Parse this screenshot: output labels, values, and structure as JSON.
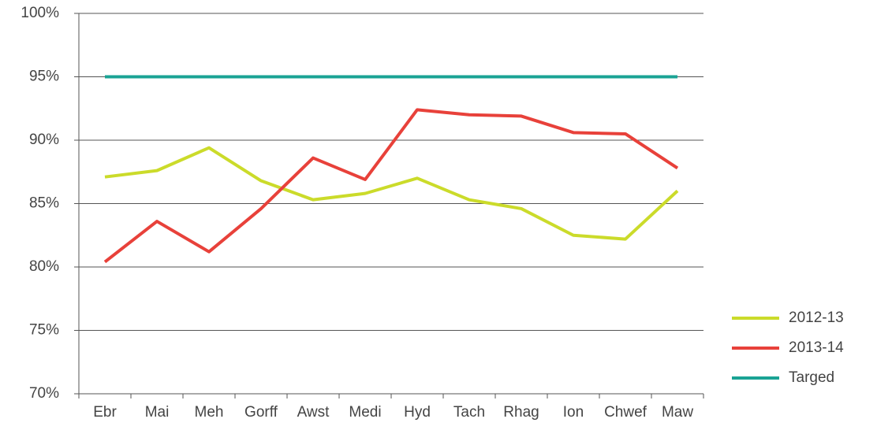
{
  "chart_data": {
    "type": "line",
    "categories": [
      "Ebr",
      "Mai",
      "Meh",
      "Gorff",
      "Awst",
      "Medi",
      "Hyd",
      "Tach",
      "Rhag",
      "Ion",
      "Chwef",
      "Maw"
    ],
    "series": [
      {
        "name": "2012-13",
        "color": "#cbdb2a",
        "values": [
          87.1,
          87.6,
          89.4,
          86.8,
          85.3,
          85.8,
          87.0,
          85.3,
          84.6,
          82.5,
          82.2,
          86.0
        ]
      },
      {
        "name": "2013-14",
        "color": "#e8413a",
        "values": [
          80.4,
          83.6,
          81.2,
          84.6,
          88.6,
          86.9,
          92.4,
          92.0,
          91.9,
          90.6,
          90.5,
          87.8
        ]
      },
      {
        "name": "Targed",
        "color": "#1aa394",
        "values": [
          95,
          95,
          95,
          95,
          95,
          95,
          95,
          95,
          95,
          95,
          95,
          95
        ]
      }
    ],
    "ylim": [
      70,
      100
    ],
    "yticks": [
      {
        "value": 70,
        "label": "70%"
      },
      {
        "value": 75,
        "label": "75%"
      },
      {
        "value": 80,
        "label": "80%"
      },
      {
        "value": 85,
        "label": "85%"
      },
      {
        "value": 90,
        "label": "90%"
      },
      {
        "value": 95,
        "label": "95%"
      },
      {
        "value": 100,
        "label": "100%"
      }
    ],
    "grid": true,
    "legend": "right"
  }
}
